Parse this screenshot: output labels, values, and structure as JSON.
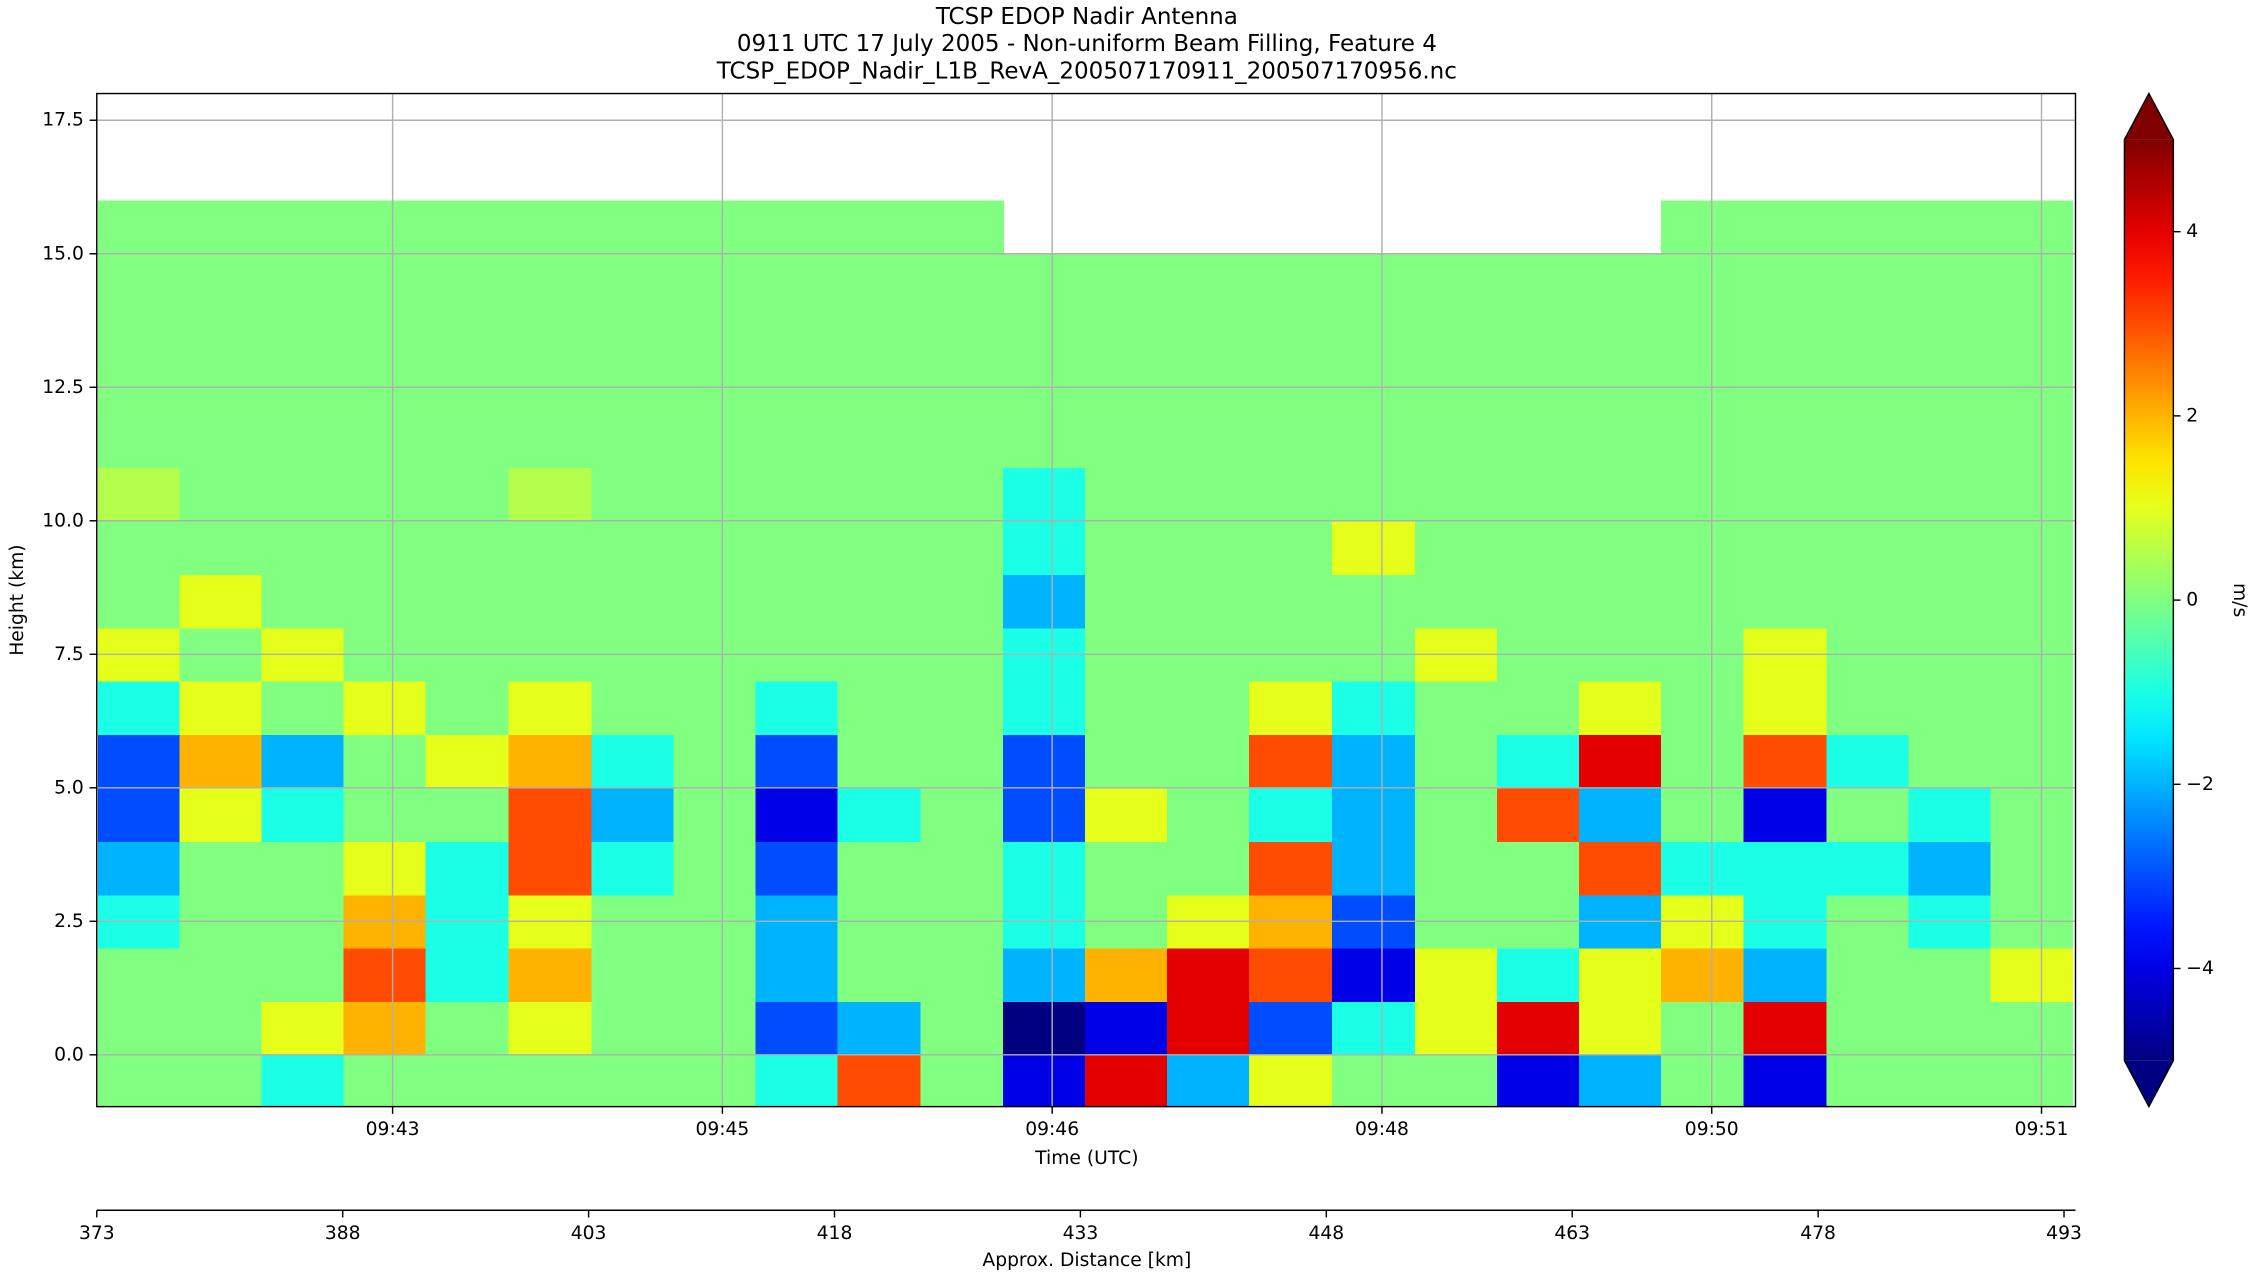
{
  "chart_data": {
    "type": "heatmap",
    "title": "TCSP EDOP Nadir Antenna",
    "subtitle": "0911 UTC 17 July 2005 - Non-uniform Beam Filling, Feature 4",
    "file_name": "TCSP_EDOP_Nadir_L1B_RevA_200507170911_200507170956.nc",
    "x_label": "Time (UTC)",
    "y_label": "Height (km)",
    "x2_label": "Approx. Distance [km]",
    "colorbar_label": "m/s",
    "colormap": "jet",
    "grid": true,
    "xlim": [
      41.92,
      51.82
    ],
    "xticks": [
      {
        "value": 43.4,
        "label": "09:43"
      },
      {
        "value": 45.05,
        "label": "09:45"
      },
      {
        "value": 46.7,
        "label": "09:46"
      },
      {
        "value": 48.35,
        "label": "09:48"
      },
      {
        "value": 50.0,
        "label": "09:50"
      },
      {
        "value": 51.65,
        "label": "09:51"
      }
    ],
    "x2lim": [
      373,
      493.7
    ],
    "x2ticks": [
      373,
      388,
      403,
      418,
      433,
      448,
      463,
      478,
      493
    ],
    "ylim": [
      -0.97,
      18.0
    ],
    "yticks": [
      {
        "value": 0,
        "label": "0.0"
      },
      2.5,
      {
        "value": 5,
        "label": "5.0"
      },
      7.5,
      {
        "value": 10,
        "label": "10.0"
      },
      12.5,
      {
        "value": 15,
        "label": "15.0"
      },
      17.5
    ],
    "clim": [
      -5,
      5
    ],
    "cticks": [
      {
        "value": -4,
        "label": "−4"
      },
      {
        "value": -2,
        "label": "−2"
      },
      0,
      2,
      4
    ],
    "x": [
      42.13,
      42.54,
      42.95,
      43.36,
      43.77,
      44.19,
      44.6,
      45.01,
      45.42,
      45.83,
      46.25,
      46.66,
      47.07,
      47.48,
      47.89,
      48.31,
      48.72,
      49.13,
      49.54,
      49.95,
      50.37,
      50.78,
      51.19,
      51.6
    ],
    "y": [
      -0.5,
      0.5,
      1.5,
      2.5,
      3.5,
      4.5,
      5.5,
      6.5,
      7.5,
      8.5,
      9.5,
      10.5,
      11.5,
      12.5,
      13.5,
      14.5,
      15.5,
      16.5,
      17.5
    ],
    "z": [
      [
        0,
        0,
        -1,
        0,
        0,
        0,
        0,
        0,
        -1,
        3,
        0,
        -4,
        4,
        -2,
        1,
        0,
        0,
        -4,
        -2,
        0,
        -4,
        0,
        0,
        0
      ],
      [
        0,
        0,
        1,
        2,
        0,
        1,
        0,
        0,
        -3,
        -2,
        0,
        -5,
        -4,
        4,
        -3,
        -1,
        1,
        4,
        1,
        0,
        4,
        0,
        0,
        0
      ],
      [
        0,
        0,
        0,
        3,
        -1,
        2,
        0,
        0,
        -2,
        0,
        0,
        -2,
        2,
        4,
        3,
        -4,
        1,
        -1,
        1,
        2,
        -2,
        0,
        0,
        1
      ],
      [
        -1,
        0,
        0,
        2,
        -1,
        1,
        0,
        0,
        -2,
        0,
        0,
        -1,
        0,
        1,
        2,
        -3,
        0,
        0,
        -2,
        1,
        -1,
        0,
        -1,
        0
      ],
      [
        -2,
        0,
        0,
        1,
        -1,
        3,
        -1,
        0,
        -3,
        0,
        0,
        -1,
        0,
        0,
        3,
        -2,
        0,
        0,
        3,
        -1,
        -1,
        -1,
        -2,
        0
      ],
      [
        -3,
        1,
        -1,
        0,
        0,
        3,
        -2,
        0,
        -4,
        -1,
        0,
        -3,
        1,
        0,
        -1,
        -2,
        0,
        3,
        -2,
        0,
        -4,
        0,
        -1,
        0
      ],
      [
        -3,
        2,
        -2,
        0,
        1,
        2,
        -1,
        0,
        -3,
        0,
        0,
        -3,
        0,
        0,
        3,
        -2,
        0,
        -1,
        4,
        0,
        3,
        -1,
        0,
        0
      ],
      [
        -1,
        1,
        0,
        1,
        0,
        1,
        0,
        0,
        -1,
        0,
        0,
        -1,
        0,
        0,
        1,
        -1,
        0,
        0,
        1,
        0,
        1,
        0,
        0,
        0
      ],
      [
        1,
        0,
        1,
        0,
        0,
        0,
        0,
        0,
        0,
        0,
        0,
        -1,
        0,
        0,
        0,
        0,
        1,
        0,
        0,
        0,
        1,
        0,
        0,
        0
      ],
      [
        0,
        1,
        0,
        0,
        0,
        0,
        0,
        0,
        0,
        0,
        0,
        -2,
        0,
        0,
        0,
        0,
        0,
        0,
        0,
        0,
        0,
        0,
        0,
        0
      ],
      [
        0,
        0,
        0,
        0,
        0,
        0,
        0,
        0,
        0,
        0,
        0,
        -1,
        0,
        0,
        0,
        1,
        0,
        0,
        0,
        0,
        0,
        0,
        0,
        0
      ],
      [
        0.5,
        0,
        0,
        0,
        0,
        0.5,
        0,
        0,
        0,
        0,
        0,
        -1,
        0,
        0,
        0,
        0,
        0,
        0,
        0,
        0,
        0,
        0,
        0,
        0
      ],
      [
        0,
        0,
        0,
        0,
        0,
        0,
        0,
        0,
        0,
        0,
        0,
        0,
        0,
        0,
        0,
        0,
        0,
        0,
        0,
        0,
        0,
        0,
        0,
        0
      ],
      [
        0,
        0,
        0,
        0,
        0,
        0,
        0,
        0,
        0,
        0,
        0,
        0,
        0,
        0,
        0,
        0,
        0,
        0,
        0,
        0,
        0,
        0,
        0,
        0
      ],
      [
        0,
        0,
        0,
        0,
        0,
        0,
        0,
        0,
        0,
        0,
        0,
        0,
        0,
        0,
        0,
        0,
        0,
        0,
        0,
        0,
        0,
        0,
        0,
        0
      ],
      [
        0,
        0,
        0,
        0,
        0,
        0,
        0,
        0,
        0,
        0,
        0,
        0,
        0,
        0,
        0,
        0,
        0,
        0,
        0,
        0,
        0,
        0,
        0,
        0
      ],
      [
        0,
        0,
        0,
        0,
        0,
        0,
        0,
        0,
        0,
        0,
        0,
        null,
        null,
        null,
        null,
        null,
        null,
        null,
        null,
        0,
        0,
        0,
        0,
        0
      ],
      [
        null,
        null,
        null,
        null,
        null,
        null,
        null,
        null,
        null,
        null,
        null,
        null,
        null,
        null,
        null,
        null,
        null,
        null,
        null,
        null,
        null,
        null,
        null,
        null
      ],
      [
        null,
        null,
        null,
        null,
        null,
        null,
        null,
        null,
        null,
        null,
        null,
        null,
        null,
        null,
        null,
        null,
        null,
        null,
        null,
        null,
        null,
        null,
        null,
        null
      ]
    ]
  }
}
